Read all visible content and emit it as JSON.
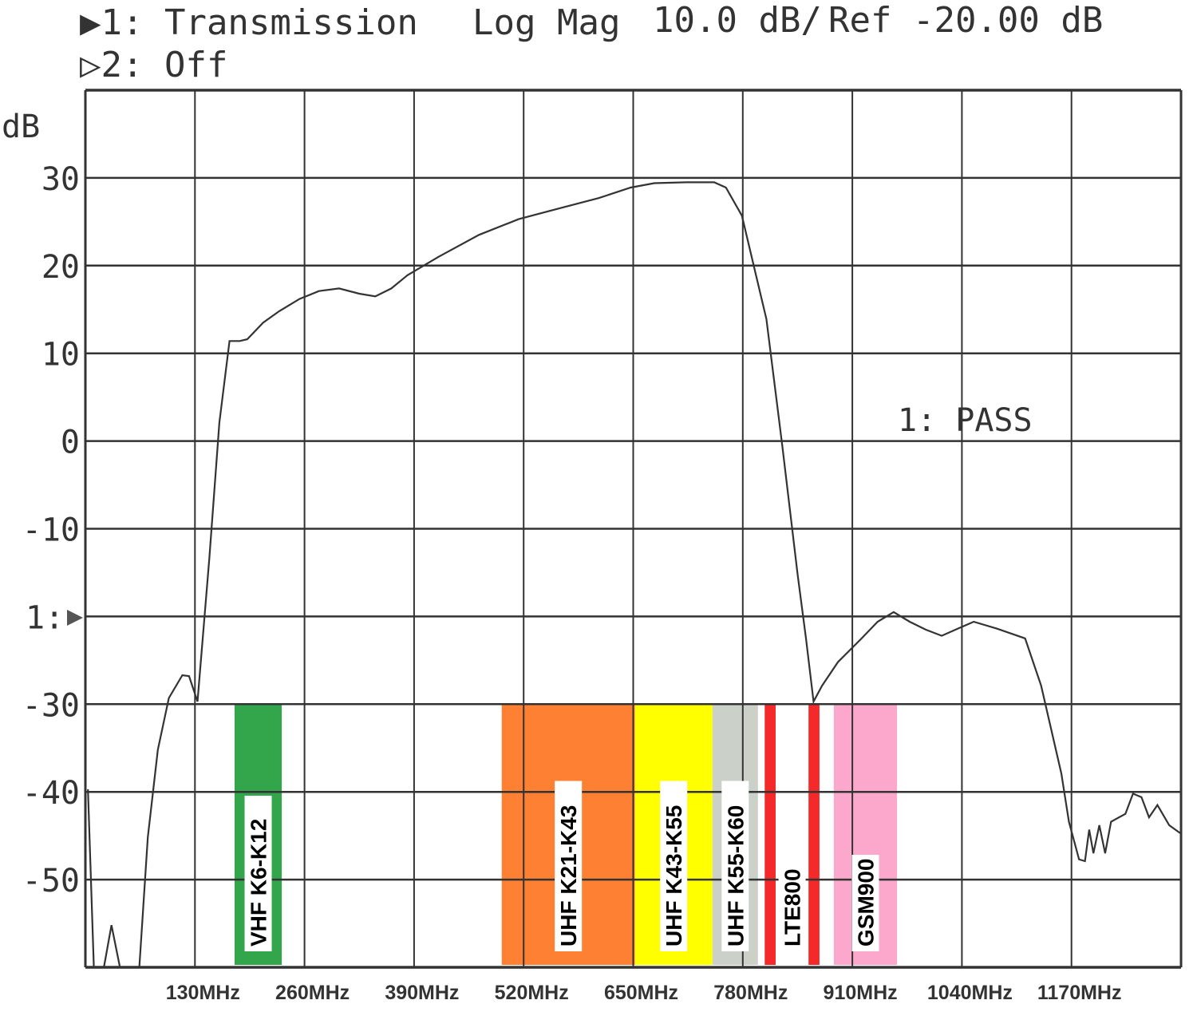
{
  "header": {
    "trace1": "▶1: Transmission",
    "format": "Log Mag",
    "scale": "10.0 dB/",
    "ref": "Ref -20.00 dB",
    "trace2": "▷2: Off"
  },
  "chart_data": {
    "type": "line",
    "title": "",
    "ylabel": "dB",
    "xlabel": "",
    "xlim": [
      0,
      1300
    ],
    "ylim": [
      -60,
      40
    ],
    "grid": true,
    "x_ticks": [
      130,
      260,
      390,
      520,
      650,
      780,
      910,
      1040,
      1170
    ],
    "x_tick_labels": [
      "130MHz",
      "260MHz",
      "390MHz",
      "520MHz",
      "650MHz",
      "780MHz",
      "910MHz",
      "1040MHz",
      "1170MHz"
    ],
    "y_ticks": [
      30,
      20,
      10,
      0,
      -10,
      -20,
      -30,
      -40,
      -50
    ],
    "y_tick_labels": [
      "30",
      "20",
      "10",
      "0",
      "-10",
      "1:",
      "-30",
      "-40",
      "-50"
    ],
    "reference_marker": {
      "label": "1:",
      "value": -20
    },
    "annotation": "1: PASS",
    "trace_color": "#333333",
    "series": [
      {
        "x": [
          3,
          10,
          22,
          31,
          41,
          64,
          74,
          86,
          99,
          115,
          123,
          133,
          147,
          159,
          171,
          183,
          192,
          211,
          230,
          254,
          277,
          301,
          325,
          344,
          363,
          382,
          419,
          467,
          514,
          561,
          609,
          647,
          675,
          713,
          746,
          760,
          779,
          808,
          827,
          845,
          855,
          864,
          874,
          893,
          921,
          940,
          959,
          978,
          997,
          1016,
          1035,
          1054,
          1082,
          1115,
          1134,
          1158,
          1167,
          1179,
          1186,
          1191,
          1196,
          1203,
          1210,
          1217,
          1234,
          1243,
          1253,
          1262,
          1272,
          1286,
          1299
        ],
        "y": [
          -39.7,
          -60,
          -60,
          -55.2,
          -60,
          -60,
          -45.2,
          -35.2,
          -29.3,
          -26.7,
          -26.8,
          -29.7,
          -13.4,
          2.1,
          11.4,
          11.4,
          11.6,
          13.5,
          14.8,
          16.2,
          17.1,
          17.4,
          16.8,
          16.5,
          17.4,
          18.9,
          21.0,
          23.5,
          25.3,
          26.5,
          27.7,
          28.9,
          29.4,
          29.5,
          29.5,
          28.9,
          25.7,
          13.9,
          -0.6,
          -15.2,
          -22.5,
          -29.7,
          -27.9,
          -25.2,
          -22.5,
          -20.6,
          -19.5,
          -20.6,
          -21.5,
          -22.2,
          -21.4,
          -20.6,
          -21.4,
          -22.5,
          -27.9,
          -37.9,
          -43.4,
          -47.7,
          -47.9,
          -44.3,
          -47.0,
          -43.8,
          -47.0,
          -43.4,
          -42.5,
          -40.2,
          -40.6,
          -42.9,
          -41.5,
          -43.8,
          -44.7
        ]
      }
    ],
    "bands": [
      {
        "label": "VHF K6-K12",
        "from": 177,
        "to": 233,
        "top": -30,
        "color": "#33a64c"
      },
      {
        "label": "UHF K21-K43",
        "from": 494,
        "to": 652,
        "top": -30,
        "color": "#fd8033"
      },
      {
        "label": "UHF K43-K55",
        "from": 652,
        "to": 744,
        "top": -30,
        "color": "#ffff00"
      },
      {
        "label": "UHF K55-K60",
        "from": 744,
        "to": 798,
        "top": -30,
        "color": "#cbd0c8"
      },
      {
        "label": "",
        "from": 806,
        "to": 819,
        "top": -30,
        "color": "#f42a2a"
      },
      {
        "label": "LTE800",
        "from": 819,
        "to": 858,
        "top": -30,
        "color": "none"
      },
      {
        "label": "",
        "from": 858,
        "to": 871,
        "top": -30,
        "color": "#f42a2a"
      },
      {
        "label": "GSM900",
        "from": 888,
        "to": 963,
        "top": -30,
        "color": "#fca8cc"
      }
    ]
  }
}
